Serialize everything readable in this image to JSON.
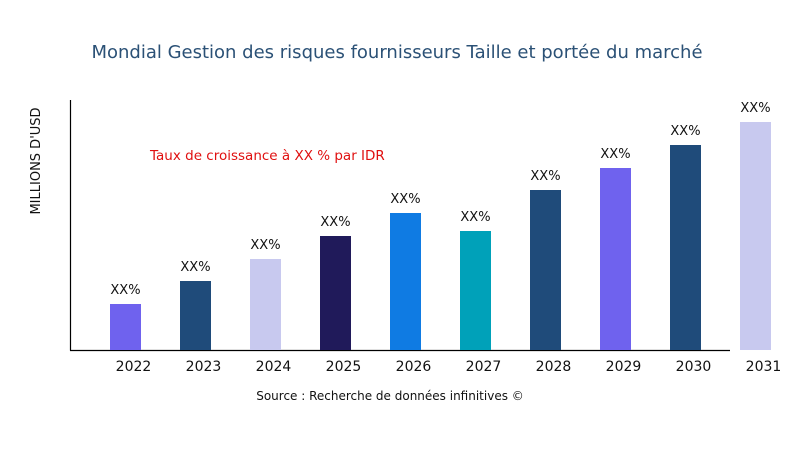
{
  "chart_data": {
    "type": "bar",
    "title": "Mondial Gestion des risques fournisseurs Taille et portée du marché",
    "xlabel": "",
    "ylabel": "MILLIONS D'USD",
    "ylim": [
      0,
      250
    ],
    "grid": false,
    "categories": [
      "2022",
      "2023",
      "2024",
      "2025",
      "2026",
      "2027",
      "2028",
      "2029",
      "2030",
      "2031"
    ],
    "values": [
      46,
      69,
      91,
      114,
      137,
      119,
      160,
      182,
      205,
      228
    ],
    "data_labels": [
      "XX%",
      "XX%",
      "XX%",
      "XX%",
      "XX%",
      "XX%",
      "XX%",
      "XX%",
      "XX%",
      "XX%"
    ],
    "colors": [
      "#6f62ee",
      "#1f4b7a",
      "#c8c9ef",
      "#201a5a",
      "#0f7be3",
      "#00a1b9",
      "#1f4b7a",
      "#6f62ee",
      "#1f4b7a",
      "#c8c9ef"
    ],
    "annotation": "Taux de croissance à XX % par IDR",
    "annotation_color": "#e01010",
    "source": "Source : Recherche de données infinitives ©"
  }
}
